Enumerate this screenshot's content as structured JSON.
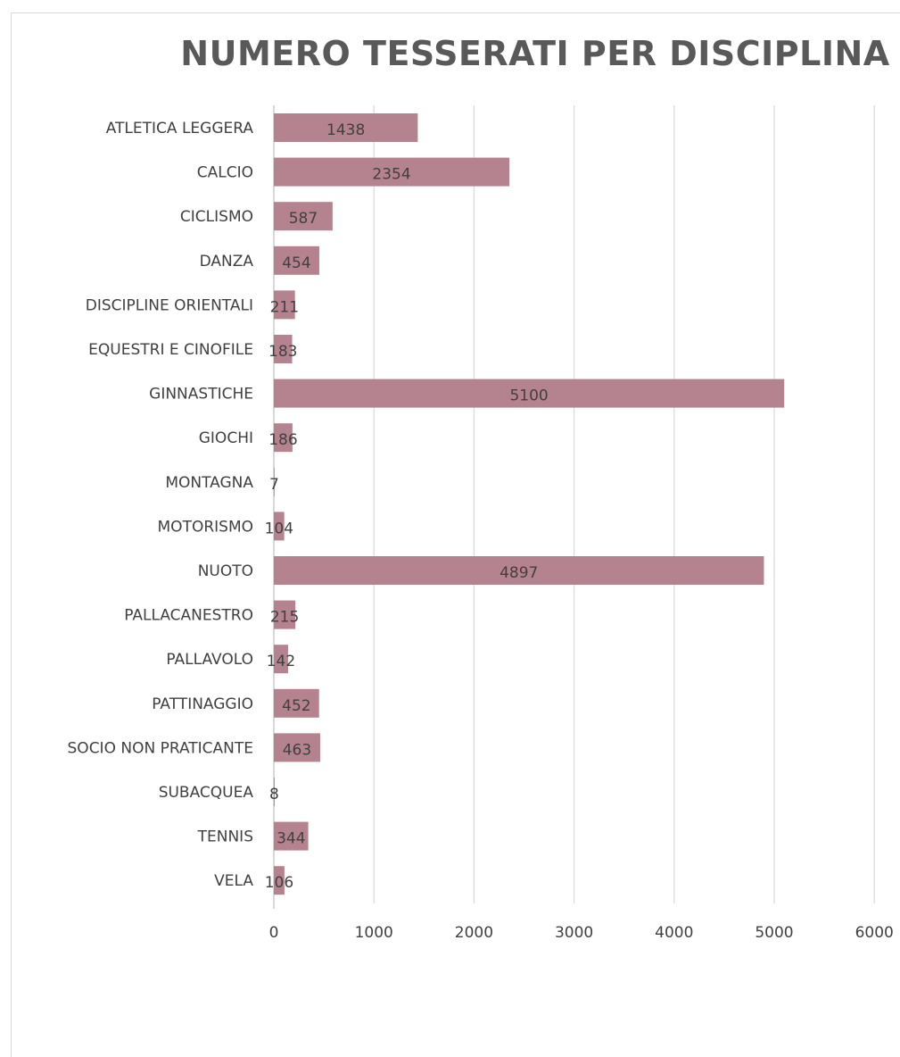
{
  "chart_data": {
    "type": "bar",
    "orientation": "horizontal",
    "title": "NUMERO TESSERATI PER DISCIPLINA",
    "categories": [
      "ATLETICA LEGGERA",
      "CALCIO",
      "CICLISMO",
      "DANZA",
      "DISCIPLINE ORIENTALI",
      "EQUESTRI E CINOFILE",
      "GINNASTICHE",
      "GIOCHI",
      "MONTAGNA",
      "MOTORISMO",
      "NUOTO",
      "PALLACANESTRO",
      "PALLAVOLO",
      "PATTINAGGIO",
      "SOCIO NON PRATICANTE",
      "SUBACQUEA",
      "TENNIS",
      "VELA"
    ],
    "values": [
      1438,
      2354,
      587,
      454,
      211,
      183,
      5100,
      186,
      7,
      104,
      4897,
      215,
      142,
      452,
      463,
      8,
      344,
      106
    ],
    "xlim": [
      0,
      6000
    ],
    "xticks": [
      0,
      1000,
      2000,
      3000,
      4000,
      5000,
      6000
    ],
    "grid": true,
    "data_labels": true,
    "bar_color": "#b5838f"
  }
}
